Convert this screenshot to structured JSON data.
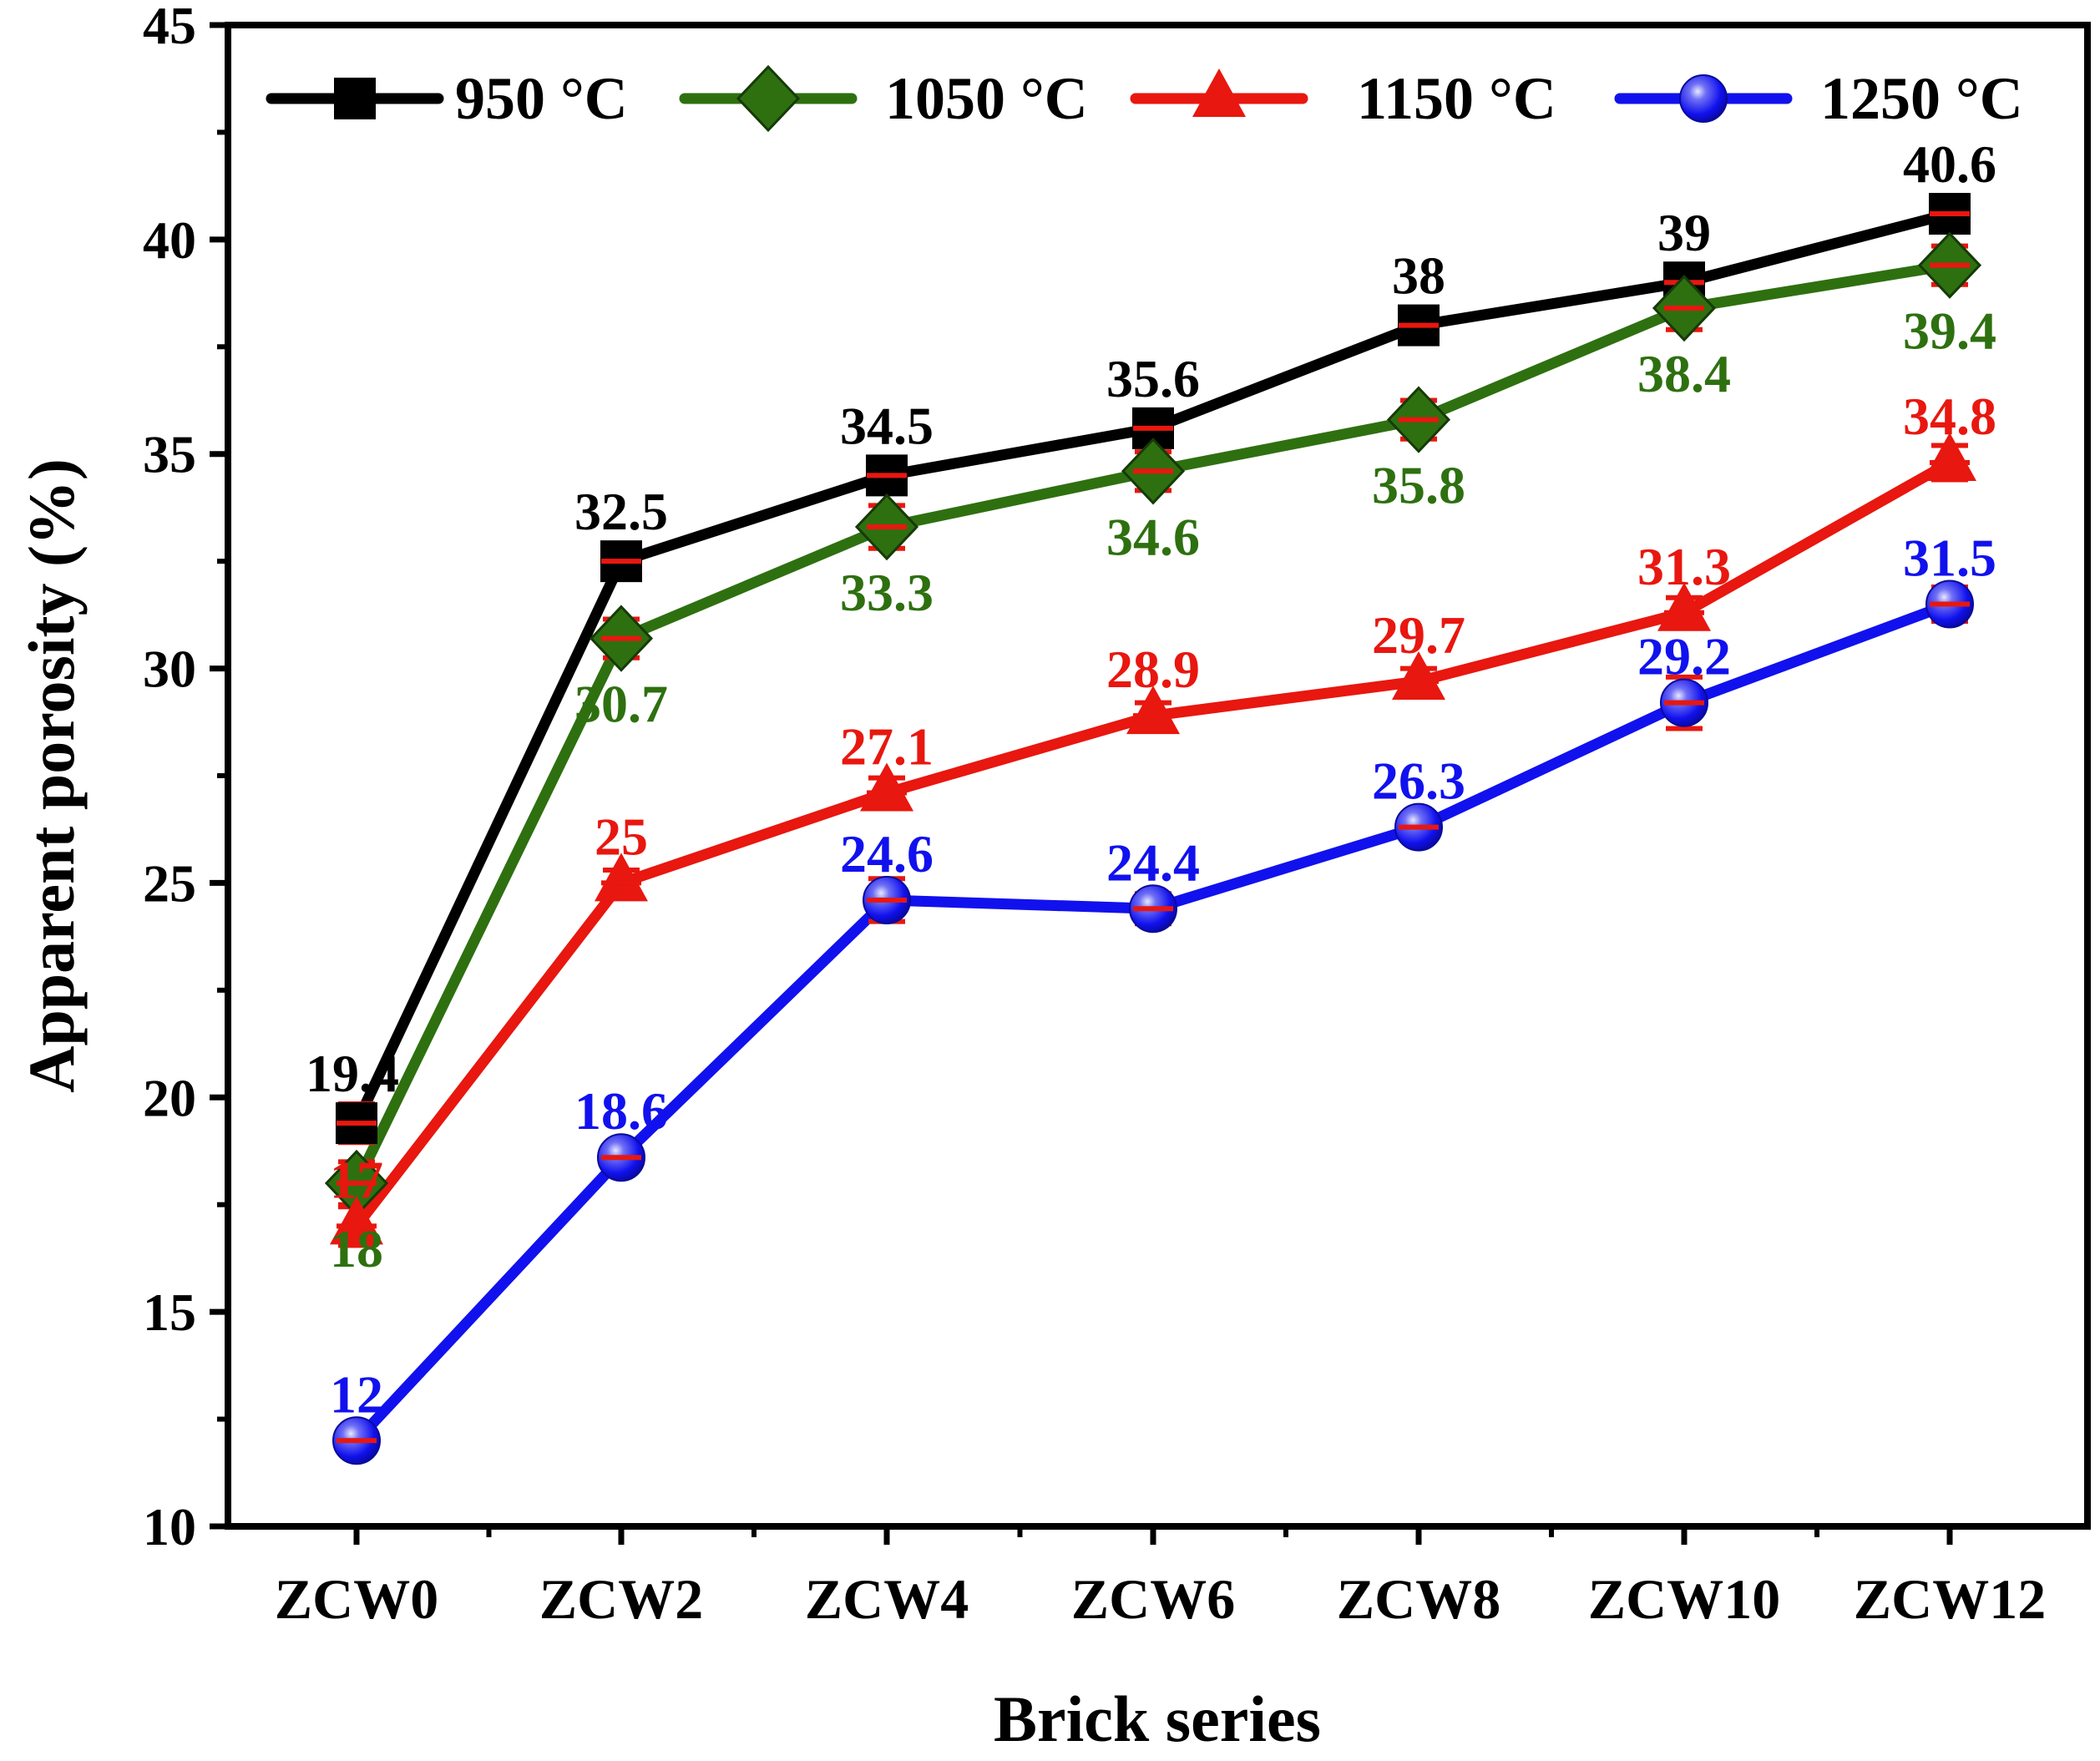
{
  "chart_data": {
    "type": "line",
    "title": "",
    "xlabel": "Brick series",
    "ylabel": "Apparent porosity (%)",
    "ylim": [
      10,
      45
    ],
    "yticks": [
      10,
      15,
      20,
      25,
      30,
      35,
      40,
      45
    ],
    "categories": [
      "ZCW0",
      "ZCW2",
      "ZCW4",
      "ZCW6",
      "ZCW8",
      "ZCW10",
      "ZCW12"
    ],
    "legend_position": "top",
    "grid": false,
    "series": [
      {
        "name": "950 °C",
        "color": "#000000",
        "marker": "square",
        "values": [
          19.4,
          32.5,
          34.5,
          35.6,
          38,
          39,
          40.6
        ],
        "labels": [
          "19.4",
          "32.5",
          "34.5",
          "35.6",
          "38",
          "39",
          "40.6"
        ],
        "errors": [
          0.45,
          0.35,
          0.4,
          0.3,
          0.35,
          0.3,
          0.35
        ]
      },
      {
        "name": "1050 °C",
        "color": "#2e7010",
        "marker": "diamond",
        "values": [
          18,
          30.7,
          33.3,
          34.6,
          35.8,
          38.4,
          39.4
        ],
        "labels": [
          "18",
          "30.7",
          "33.3",
          "34.6",
          "35.8",
          "38.4",
          "39.4"
        ],
        "errors": [
          0.5,
          0.45,
          0.5,
          0.45,
          0.45,
          0.5,
          0.45
        ]
      },
      {
        "name": "1150 °C",
        "color": "#e8170f",
        "marker": "triangle",
        "values": [
          17,
          25,
          27.1,
          28.9,
          29.7,
          31.3,
          34.8
        ],
        "labels": [
          "17",
          "25",
          "27.1",
          "28.9",
          "29.7",
          "31.3",
          "34.8"
        ],
        "errors": [
          0.45,
          0.3,
          0.35,
          0.3,
          0.3,
          0.35,
          0.4
        ]
      },
      {
        "name": "1250 °C",
        "color": "#1111ee",
        "marker": "circle",
        "values": [
          12,
          18.6,
          24.6,
          24.4,
          26.3,
          29.2,
          31.5
        ],
        "labels": [
          "12",
          "18.6",
          "24.6",
          "24.4",
          "26.3",
          "29.2",
          "31.5"
        ],
        "errors": [
          0.3,
          0.3,
          0.5,
          0.35,
          0.3,
          0.6,
          0.4
        ]
      }
    ]
  }
}
